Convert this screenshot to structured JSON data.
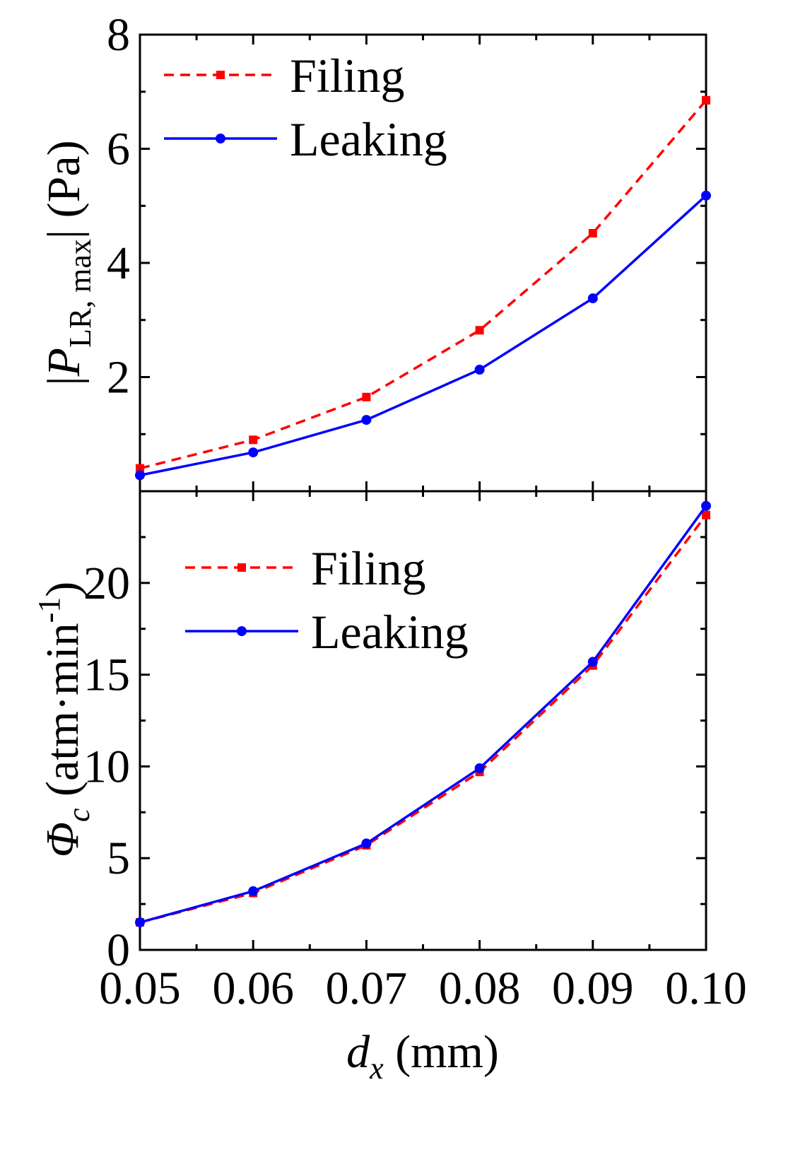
{
  "chart_data": [
    {
      "type": "line",
      "panel": "top",
      "xlim": [
        0.05,
        0.1
      ],
      "ylim": [
        0,
        8
      ],
      "yticks": [
        2,
        4,
        6,
        8
      ],
      "ytick_labels": [
        "2",
        "4",
        "6",
        "8"
      ],
      "ylabel": {
        "prefix": "|",
        "symbol": "P",
        "subscript": "LR, max",
        "suffix": "| (Pa)"
      },
      "x": [
        0.05,
        0.06,
        0.07,
        0.08,
        0.09,
        0.1
      ],
      "legend_position": "top-left",
      "series": [
        {
          "name": "Filing",
          "color": "#ff0000",
          "line_style": "dashed",
          "marker": "square",
          "values": [
            0.4,
            0.9,
            1.65,
            2.82,
            4.52,
            6.85
          ]
        },
        {
          "name": "Leaking",
          "color": "#0000ff",
          "line_style": "solid",
          "marker": "circle",
          "values": [
            0.28,
            0.68,
            1.25,
            2.13,
            3.38,
            5.18
          ]
        }
      ]
    },
    {
      "type": "line",
      "panel": "bottom",
      "xlim": [
        0.05,
        0.1
      ],
      "ylim": [
        0,
        25
      ],
      "yticks": [
        0,
        5,
        10,
        15,
        20
      ],
      "ytick_labels": [
        "0",
        "5",
        "10",
        "15",
        "20"
      ],
      "ylabel": {
        "symbol": "Φ",
        "subscript": "c",
        "text": " (atm·min",
        "superscript": "-1",
        "suffix": ")"
      },
      "x": [
        0.05,
        0.06,
        0.07,
        0.08,
        0.09,
        0.1
      ],
      "xtick_labels": [
        "0.05",
        "0.06",
        "0.07",
        "0.08",
        "0.09",
        "0.10"
      ],
      "xlabel": {
        "symbol": "d",
        "subscript": "x",
        "suffix": " (mm)"
      },
      "legend_position": "upper-left",
      "series": [
        {
          "name": "Filing",
          "color": "#ff0000",
          "line_style": "dashed",
          "marker": "square",
          "values": [
            1.5,
            3.1,
            5.7,
            9.7,
            15.5,
            23.7
          ]
        },
        {
          "name": "Leaking",
          "color": "#0000ff",
          "line_style": "solid",
          "marker": "circle",
          "values": [
            1.5,
            3.2,
            5.8,
            9.9,
            15.7,
            24.2
          ]
        }
      ]
    }
  ]
}
